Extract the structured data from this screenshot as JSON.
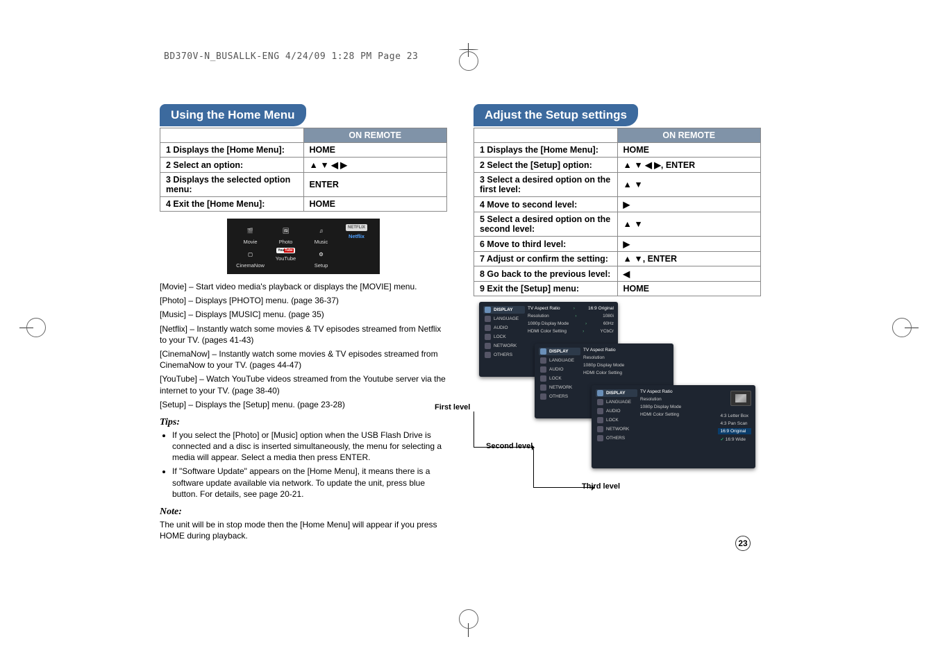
{
  "header_text": "BD370V-N_BUSALLK-ENG  4/24/09  1:28 PM  Page 23",
  "page_number": "23",
  "left": {
    "title": "Using the Home Menu",
    "table": {
      "remote_header": "ON REMOTE",
      "rows": [
        {
          "step": "1",
          "desc": "Displays the [Home Menu]:",
          "remote": "HOME"
        },
        {
          "step": "2",
          "desc": "Select an option:",
          "remote": "▲ ▼ ◀ ▶"
        },
        {
          "step": "3",
          "desc": "Displays the selected option menu:",
          "remote": "ENTER"
        },
        {
          "step": "4",
          "desc": "Exit the [Home Menu]:",
          "remote": "HOME"
        }
      ]
    },
    "home_menu_items": [
      {
        "label": "Movie"
      },
      {
        "label": "Photo"
      },
      {
        "label": "Music"
      },
      {
        "label": "Netflix"
      },
      {
        "label": "CinemaNow"
      },
      {
        "label": "YouTube"
      },
      {
        "label": "Setup"
      }
    ],
    "descriptions": [
      "[Movie] – Start video media's playback or displays the [MOVIE] menu.",
      "[Photo] – Displays [PHOTO] menu. (page 36-37)",
      "[Music] – Displays [MUSIC] menu. (page 35)",
      "[Netflix] – Instantly watch some movies & TV episodes streamed from Netflix to your TV. (pages 41-43)",
      "[CinemaNow] – Instantly watch some movies & TV episodes streamed from CinemaNow to your TV. (pages 44-47)",
      "[YouTube] – Watch YouTube videos streamed from the Youtube server via the internet to your TV. (page 38-40)",
      "[Setup] – Displays the [Setup] menu. (page 23-28)"
    ],
    "tips_head": "Tips:",
    "tips": [
      "If you select the [Photo] or [Music] option when the USB Flash Drive is connected and a disc is inserted simultaneously, the menu for selecting a media will appear. Select a media then press ENTER.",
      "If \"Software Update\" appears on the [Home Menu], it means there is a software update available via network. To update the unit, press blue button. For details, see page 20-21."
    ],
    "note_head": "Note:",
    "note_text": "The unit will be in stop mode then the [Home Menu] will appear if you press HOME during playback."
  },
  "right": {
    "title": "Adjust the Setup settings",
    "table": {
      "remote_header": "ON REMOTE",
      "rows": [
        {
          "step": "1",
          "desc": "Displays the [Home Menu]:",
          "remote": "HOME"
        },
        {
          "step": "2",
          "desc": "Select the [Setup] option:",
          "remote": "▲ ▼ ◀ ▶, ENTER"
        },
        {
          "step": "3",
          "desc": "Select a desired option on the first level:",
          "remote": "▲ ▼"
        },
        {
          "step": "4",
          "desc": "Move to second level:",
          "remote": "▶"
        },
        {
          "step": "5",
          "desc": "Select a desired option on the second level:",
          "remote": "▲ ▼"
        },
        {
          "step": "6",
          "desc": "Move to third level:",
          "remote": "▶"
        },
        {
          "step": "7",
          "desc": "Adjust or confirm the setting:",
          "remote": "▲ ▼, ENTER"
        },
        {
          "step": "8",
          "desc": "Go back to the previous level:",
          "remote": "◀"
        },
        {
          "step": "9",
          "desc": "Exit the [Setup] menu:",
          "remote": "HOME"
        }
      ]
    },
    "setup_sidebar": [
      "DISPLAY",
      "LANGUAGE",
      "AUDIO",
      "LOCK",
      "NETWORK",
      "OTHERS"
    ],
    "setup_options_l1": [
      {
        "k": "TV Aspect Ratio",
        "v": "16:9 Original"
      },
      {
        "k": "Resolution",
        "v": "1080i"
      },
      {
        "k": "1080p Display Mode",
        "v": "60Hz"
      },
      {
        "k": "HDMI Color Setting",
        "v": "YCbCr"
      }
    ],
    "setup_options_l2": [
      "TV Aspect Ratio",
      "Resolution",
      "1080p Display Mode",
      "HDMI Color Setting"
    ],
    "setup_options_l2_hint": "4:3 Letter Box",
    "setup_options_l3": [
      "4:3 Letter Box",
      "4:3 Pan Scan",
      "16:9 Original",
      "16:9 Wide"
    ],
    "level_labels": {
      "l1": "First level",
      "l2": "Second level",
      "l3": "Third level"
    }
  },
  "colors": {
    "title_bg": "#3c6a9e",
    "header_bg": "#8093a8",
    "panel_bg": "#1e2530"
  }
}
